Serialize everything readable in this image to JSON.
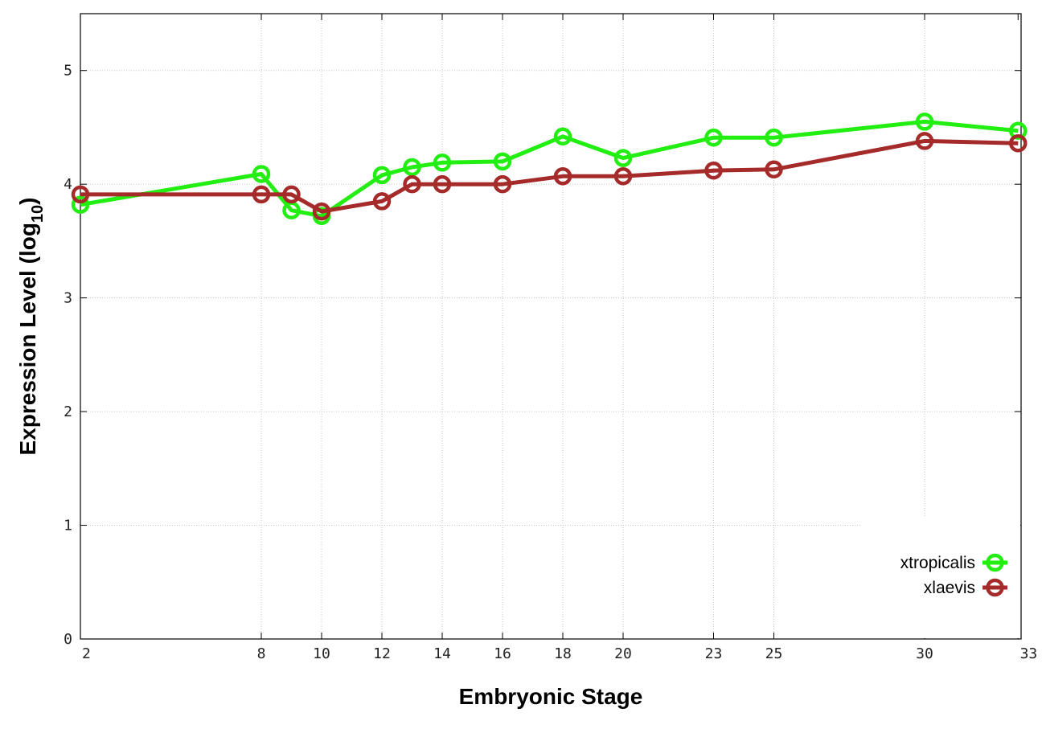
{
  "chart_data": {
    "type": "line",
    "xlabel": "Embryonic Stage",
    "ylabel_main": "Expression Level (log",
    "ylabel_sub": "10",
    "ylabel_close": ")",
    "x_ticks": [
      "2",
      "8",
      "10",
      "12",
      "14",
      "16",
      "18",
      "20",
      "23",
      "25",
      "30",
      "33"
    ],
    "y_ticks": [
      "0",
      "1",
      "2",
      "3",
      "4",
      "5"
    ],
    "xlim": [
      0,
      31.2
    ],
    "ylim": [
      0,
      5.5
    ],
    "grid": true,
    "legend_position": "bottom-right",
    "series": [
      {
        "name": "xtropicalis",
        "color": "#22ee11",
        "points": [
          {
            "stage": "2",
            "x": 0,
            "y": 3.82
          },
          {
            "stage": "8",
            "x": 6,
            "y": 4.09
          },
          {
            "stage": "9",
            "x": 7,
            "y": 3.77
          },
          {
            "stage": "10",
            "x": 8,
            "y": 3.72
          },
          {
            "stage": "12",
            "x": 10,
            "y": 4.08
          },
          {
            "stage": "13",
            "x": 11,
            "y": 4.15
          },
          {
            "stage": "14",
            "x": 12,
            "y": 4.19
          },
          {
            "stage": "16",
            "x": 14,
            "y": 4.2
          },
          {
            "stage": "18",
            "x": 16,
            "y": 4.42
          },
          {
            "stage": "20",
            "x": 18,
            "y": 4.23
          },
          {
            "stage": "23",
            "x": 21,
            "y": 4.41
          },
          {
            "stage": "25",
            "x": 23,
            "y": 4.41
          },
          {
            "stage": "30",
            "x": 28,
            "y": 4.55
          },
          {
            "stage": "33",
            "x": 31.1,
            "y": 4.47
          }
        ]
      },
      {
        "name": "xlaevis",
        "color": "#a52a2a",
        "points": [
          {
            "stage": "2",
            "x": 0,
            "y": 3.91
          },
          {
            "stage": "8",
            "x": 6,
            "y": 3.91
          },
          {
            "stage": "9",
            "x": 7,
            "y": 3.91
          },
          {
            "stage": "10",
            "x": 8,
            "y": 3.76
          },
          {
            "stage": "12",
            "x": 10,
            "y": 3.85
          },
          {
            "stage": "13",
            "x": 11,
            "y": 4.0
          },
          {
            "stage": "14",
            "x": 12,
            "y": 4.0
          },
          {
            "stage": "16",
            "x": 14,
            "y": 4.0
          },
          {
            "stage": "18",
            "x": 16,
            "y": 4.07
          },
          {
            "stage": "20",
            "x": 18,
            "y": 4.07
          },
          {
            "stage": "23",
            "x": 21,
            "y": 4.12
          },
          {
            "stage": "25",
            "x": 23,
            "y": 4.13
          },
          {
            "stage": "30",
            "x": 28,
            "y": 4.38
          },
          {
            "stage": "33",
            "x": 31.1,
            "y": 4.36
          }
        ]
      }
    ]
  }
}
